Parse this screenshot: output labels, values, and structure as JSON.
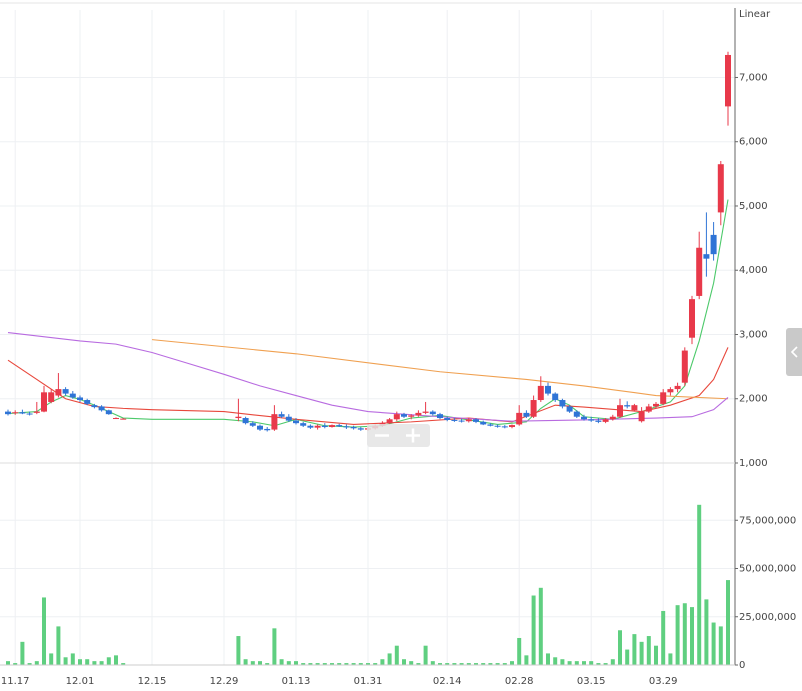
{
  "chart_data": {
    "type": "candlestick",
    "scale_label": "Linear",
    "categories": [
      null,
      "11.17",
      null,
      null,
      null,
      null,
      null,
      null,
      null,
      null,
      "12.01",
      null,
      null,
      null,
      null,
      null,
      null,
      null,
      null,
      null,
      "12.15",
      null,
      null,
      null,
      null,
      null,
      null,
      null,
      null,
      null,
      "12.29",
      null,
      null,
      null,
      null,
      null,
      null,
      null,
      null,
      null,
      "01.13",
      null,
      null,
      null,
      null,
      null,
      null,
      null,
      null,
      null,
      "01.31",
      null,
      null,
      null,
      null,
      null,
      null,
      null,
      null,
      null,
      null,
      "02.14",
      null,
      null,
      null,
      null,
      null,
      null,
      null,
      null,
      null,
      "02.28",
      null,
      null,
      null,
      null,
      null,
      null,
      null,
      null,
      null,
      "03.15",
      null,
      null,
      null,
      null,
      null,
      null,
      null,
      null,
      null,
      "03.29",
      null,
      null,
      null,
      null,
      null,
      null,
      null,
      null,
      null
    ],
    "open": [
      1800,
      1780,
      1790,
      1770,
      1780,
      1800,
      1950,
      2050,
      2150,
      2080,
      2020,
      1980,
      1900,
      1880,
      1820,
      1700,
      1690,
      null,
      null,
      null,
      null,
      null,
      null,
      null,
      null,
      null,
      null,
      null,
      null,
      null,
      null,
      null,
      1700,
      1700,
      1620,
      1580,
      1530,
      1520,
      1760,
      1720,
      1660,
      1620,
      1580,
      1550,
      1580,
      1560,
      1590,
      1570,
      1560,
      1540,
      1520,
      1540,
      1580,
      1620,
      1680,
      1760,
      1720,
      1740,
      1780,
      1800,
      1760,
      1700,
      1670,
      1660,
      1650,
      1680,
      1640,
      1600,
      1580,
      1570,
      1560,
      1600,
      1780,
      1720,
      1980,
      2200,
      2080,
      1980,
      1880,
      1800,
      1720,
      1680,
      1660,
      1640,
      1680,
      1720,
      1900,
      1820,
      1650,
      1800,
      1880,
      1920,
      2100,
      2150,
      2250,
      2950,
      3600,
      4250,
      4550,
      4900,
      6550
    ],
    "high": [
      1830,
      1820,
      1830,
      1800,
      1950,
      2200,
      2150,
      2400,
      2180,
      2120,
      2050,
      2000,
      1920,
      1900,
      1830,
      1710,
      1700,
      null,
      null,
      null,
      null,
      null,
      null,
      null,
      null,
      null,
      null,
      null,
      null,
      null,
      null,
      null,
      2000,
      1720,
      1650,
      1600,
      1560,
      1900,
      1800,
      1760,
      1700,
      1640,
      1600,
      1600,
      1620,
      1600,
      1610,
      1600,
      1580,
      1560,
      1560,
      1600,
      1650,
      1700,
      1800,
      1780,
      1760,
      1820,
      1950,
      1820,
      1780,
      1720,
      1700,
      1690,
      1700,
      1700,
      1660,
      1620,
      1600,
      1590,
      1600,
      1900,
      1820,
      2050,
      2350,
      2250,
      2100,
      2000,
      1900,
      1820,
      1750,
      1720,
      1700,
      1700,
      1750,
      2000,
      1960,
      1920,
      1870,
      1920,
      1950,
      2150,
      2180,
      2250,
      2800,
      3600,
      4600,
      4900,
      4750,
      5700,
      7400
    ],
    "low": [
      1740,
      1750,
      1760,
      1740,
      1760,
      1790,
      1930,
      2020,
      2050,
      2000,
      1950,
      1900,
      1850,
      1800,
      1750,
      1690,
      1680,
      null,
      null,
      null,
      null,
      null,
      null,
      null,
      null,
      null,
      null,
      null,
      null,
      null,
      null,
      null,
      1650,
      1600,
      1560,
      1500,
      1490,
      1500,
      1700,
      1640,
      1600,
      1560,
      1530,
      1520,
      1540,
      1550,
      1560,
      1530,
      1520,
      1500,
      1500,
      1520,
      1560,
      1600,
      1650,
      1700,
      1680,
      1720,
      1760,
      1740,
      1680,
      1650,
      1640,
      1630,
      1630,
      1620,
      1590,
      1570,
      1550,
      1540,
      1540,
      1580,
      1700,
      1700,
      1950,
      2050,
      1950,
      1850,
      1780,
      1700,
      1660,
      1640,
      1620,
      1620,
      1660,
      1700,
      1850,
      1800,
      1630,
      1780,
      1850,
      1900,
      2050,
      2100,
      2200,
      2850,
      3550,
      3900,
      4150,
      4700,
      6250
    ],
    "close": [
      1760,
      1790,
      1770,
      1760,
      1800,
      2100,
      2100,
      2150,
      2080,
      2020,
      1980,
      1920,
      1870,
      1820,
      1760,
      1700,
      1690,
      null,
      null,
      null,
      null,
      null,
      null,
      null,
      null,
      null,
      null,
      null,
      null,
      null,
      null,
      null,
      1720,
      1620,
      1580,
      1520,
      1510,
      1760,
      1720,
      1660,
      1620,
      1580,
      1550,
      1580,
      1560,
      1590,
      1570,
      1560,
      1540,
      1520,
      1540,
      1580,
      1620,
      1680,
      1760,
      1720,
      1740,
      1780,
      1800,
      1760,
      1700,
      1670,
      1660,
      1650,
      1680,
      1640,
      1600,
      1580,
      1570,
      1560,
      1590,
      1780,
      1720,
      1980,
      2200,
      2080,
      1980,
      1880,
      1800,
      1720,
      1680,
      1660,
      1640,
      1680,
      1720,
      1900,
      1880,
      1900,
      1800,
      1880,
      1920,
      2100,
      2150,
      2200,
      2750,
      3550,
      4350,
      4180,
      4250,
      5650,
      7350
    ],
    "up_color": "#e8394a",
    "down_color": "#2f74d6",
    "ylim": [
      1000,
      8050
    ],
    "yticks": [
      {
        "value": 1000,
        "label": "1,000"
      },
      {
        "value": 2000,
        "label": "2,000"
      },
      {
        "value": 3000,
        "label": "3,000"
      },
      {
        "value": 4000,
        "label": "4,000"
      },
      {
        "value": 5000,
        "label": "5,000"
      },
      {
        "value": 6000,
        "label": "6,000"
      },
      {
        "value": 7000,
        "label": "7,000"
      }
    ],
    "grid": true,
    "moving_averages": [
      {
        "color": "#4cc96a",
        "x": [
          0,
          4,
          6,
          8,
          10,
          12,
          14,
          16,
          20,
          30,
          34,
          37,
          40,
          44,
          48,
          52,
          56,
          60,
          64,
          68,
          72,
          74,
          76,
          78,
          80,
          84,
          88,
          92,
          94,
          96,
          98,
          100
        ],
        "values": [
          1770,
          1800,
          1950,
          2050,
          1990,
          1900,
          1800,
          1700,
          1680,
          1680,
          1640,
          1580,
          1680,
          1580,
          1560,
          1580,
          1700,
          1740,
          1670,
          1600,
          1640,
          1850,
          2000,
          1900,
          1720,
          1680,
          1800,
          1950,
          2200,
          2900,
          3800,
          5100
        ]
      },
      {
        "color": "#e8483c",
        "x": [
          0,
          4,
          8,
          12,
          16,
          20,
          30,
          34,
          40,
          48,
          56,
          64,
          70,
          76,
          80,
          88,
          92,
          96,
          98,
          100
        ],
        "values": [
          2600,
          2300,
          2000,
          1880,
          1850,
          1830,
          1800,
          1750,
          1680,
          1600,
          1640,
          1700,
          1640,
          1900,
          1870,
          1800,
          1900,
          2050,
          2300,
          2800
        ]
      },
      {
        "color": "#f0a050",
        "x": [
          20,
          40,
          60,
          72,
          80,
          90,
          100
        ],
        "values": [
          2920,
          2700,
          2420,
          2300,
          2200,
          2050,
          2000
        ]
      },
      {
        "color": "#b86be0",
        "x": [
          0,
          10,
          15,
          20,
          25,
          30,
          35,
          40,
          45,
          50,
          55,
          60,
          70,
          80,
          90,
          95,
          98,
          100
        ],
        "values": [
          3030,
          2900,
          2850,
          2720,
          2550,
          2380,
          2200,
          2050,
          1900,
          1800,
          1760,
          1720,
          1650,
          1670,
          1700,
          1720,
          1830,
          2020
        ]
      }
    ],
    "volume": {
      "color": "#5fcf80",
      "ylim": [
        0,
        100000000
      ],
      "yticks": [
        0,
        {
          "value": 25000000,
          "label": "25,000,000"
        },
        {
          "value": 50000000,
          "label": "50,000,000"
        },
        {
          "value": 75000000,
          "label": "75,000,000"
        }
      ],
      "values": [
        2000000,
        1000000,
        12000000,
        1000000,
        2000000,
        35000000,
        6000000,
        20000000,
        4000000,
        6000000,
        3000000,
        3000000,
        2000000,
        2000000,
        4000000,
        5000000,
        1000000,
        null,
        null,
        null,
        null,
        null,
        null,
        null,
        null,
        null,
        null,
        null,
        null,
        null,
        null,
        null,
        15000000,
        3000000,
        2000000,
        2000000,
        1000000,
        19000000,
        3000000,
        2000000,
        2000000,
        1000000,
        1000000,
        1000000,
        1000000,
        1000000,
        1000000,
        1000000,
        1000000,
        1000000,
        1000000,
        1000000,
        3000000,
        6000000,
        10000000,
        3000000,
        2000000,
        1000000,
        10000000,
        2000000,
        1000000,
        1000000,
        1000000,
        1000000,
        1000000,
        1000000,
        1000000,
        1000000,
        1000000,
        1000000,
        2000000,
        14000000,
        5000000,
        36000000,
        40000000,
        6000000,
        4000000,
        3000000,
        2000000,
        2000000,
        2000000,
        2000000,
        1000000,
        1000000,
        3000000,
        18000000,
        8000000,
        16000000,
        12000000,
        15000000,
        10000000,
        28000000,
        6000000,
        31000000,
        32000000,
        30000000,
        83000000,
        34000000,
        22000000,
        20000000,
        44000000
      ]
    }
  }
}
